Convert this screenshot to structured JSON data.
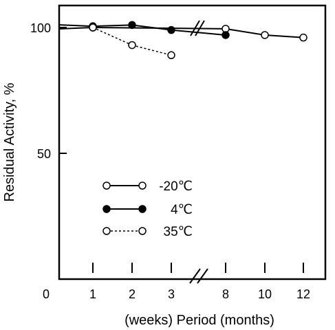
{
  "chart_data": {
    "type": "line",
    "ylabel": "Residual Activity, %",
    "xlabel": "(weeks) Period (months)",
    "ylim": [
      0,
      110
    ],
    "y_ticks": [
      50,
      100
    ],
    "y_tick_labels": [
      "50",
      "100"
    ],
    "x_origin_label": "0",
    "axis_break": "between 3 weeks and 8 months",
    "grid": false,
    "legend_placement": "lower-left inside plot",
    "x_axis": [
      {
        "label": "1",
        "unit": "weeks"
      },
      {
        "label": "2",
        "unit": "weeks"
      },
      {
        "label": "3",
        "unit": "weeks"
      },
      {
        "label": "8",
        "unit": "months"
      },
      {
        "label": "10",
        "unit": "months"
      },
      {
        "label": "12",
        "unit": "months"
      }
    ],
    "series": [
      {
        "name": "-20℃",
        "marker": "open-circle",
        "line": "solid",
        "x": [
          "1w",
          "8m",
          "10m",
          "12m"
        ],
        "values": [
          100,
          99.5,
          97,
          96
        ]
      },
      {
        "name": "4℃",
        "marker": "filled-circle",
        "line": "solid",
        "x": [
          "1w",
          "2w",
          "3w",
          "8m"
        ],
        "values": [
          100.5,
          101,
          99,
          97
        ]
      },
      {
        "name": "35℃",
        "marker": "open-circle",
        "line": "dashed",
        "x": [
          "1w",
          "2w",
          "3w"
        ],
        "values": [
          100,
          93,
          89
        ]
      }
    ]
  }
}
